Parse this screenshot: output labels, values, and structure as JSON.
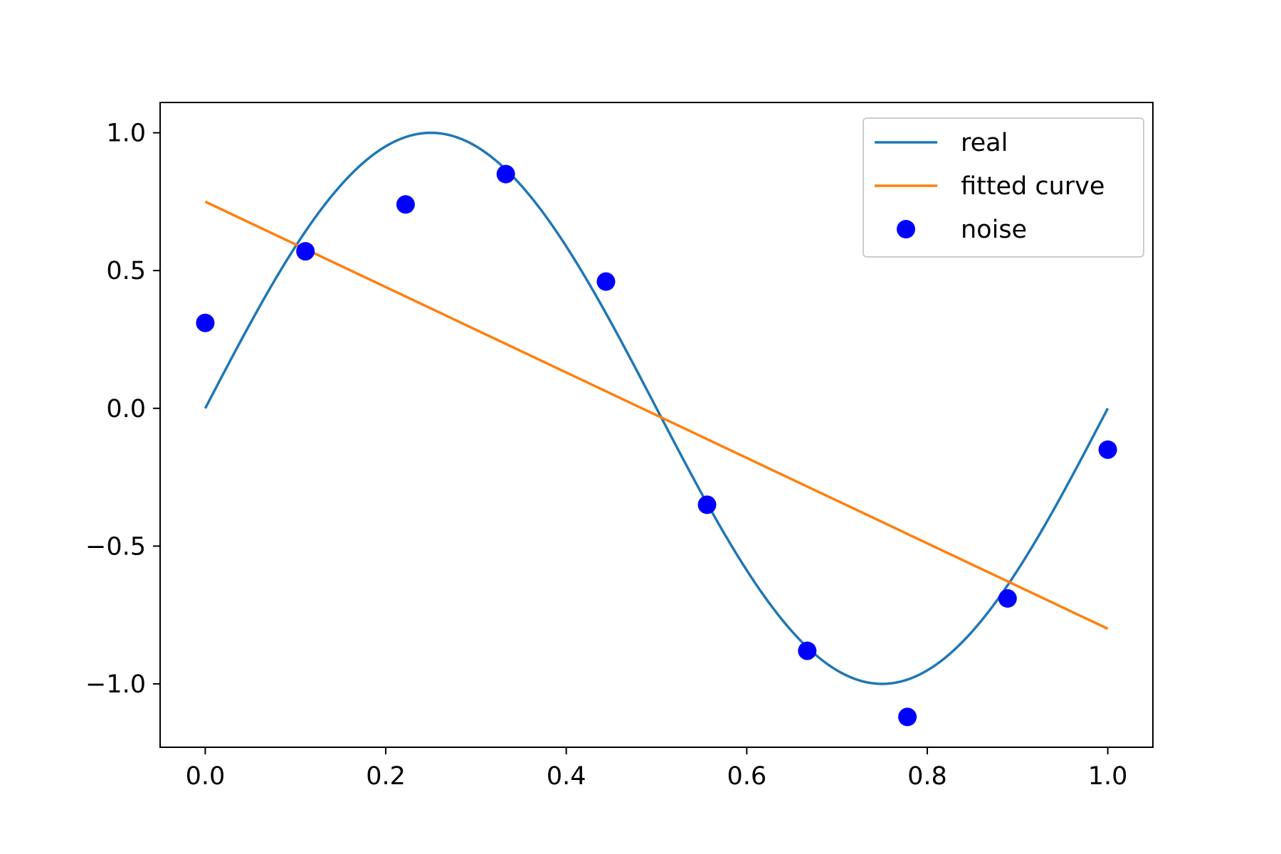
{
  "chart_data": {
    "type": "line",
    "title": "",
    "xlabel": "",
    "ylabel": "",
    "xlim": [
      -0.05,
      1.05
    ],
    "ylim": [
      -1.23,
      1.11
    ],
    "grid": false,
    "legend_position": "top-right",
    "xticks": [
      {
        "value": 0.0,
        "label": "0.0"
      },
      {
        "value": 0.2,
        "label": "0.2"
      },
      {
        "value": 0.4,
        "label": "0.4"
      },
      {
        "value": 0.6,
        "label": "0.6"
      },
      {
        "value": 0.8,
        "label": "0.8"
      },
      {
        "value": 1.0,
        "label": "1.0"
      }
    ],
    "yticks": [
      {
        "value": 1.0,
        "label": "1.0"
      },
      {
        "value": 0.5,
        "label": "0.5"
      },
      {
        "value": 0.0,
        "label": "0.0"
      },
      {
        "value": -0.5,
        "label": "−0.5"
      },
      {
        "value": -1.0,
        "label": "−1.0"
      }
    ],
    "series": [
      {
        "name": "real",
        "kind": "line",
        "color": "#1f77b4",
        "x": [
          0.0,
          0.05,
          0.1,
          0.15,
          0.2,
          0.25,
          0.3,
          0.35,
          0.4,
          0.45,
          0.5,
          0.55,
          0.6,
          0.65,
          0.7,
          0.75,
          0.8,
          0.85,
          0.9,
          0.95,
          1.0
        ],
        "y": [
          0.0,
          0.309,
          0.588,
          0.809,
          0.951,
          1.0,
          0.951,
          0.809,
          0.588,
          0.309,
          0.0,
          -0.309,
          -0.588,
          -0.809,
          -0.951,
          -1.0,
          -0.951,
          -0.809,
          -0.588,
          -0.309,
          0.0
        ]
      },
      {
        "name": "fitted curve",
        "kind": "line",
        "color": "#ff7f0e",
        "x": [
          0.0,
          1.0
        ],
        "y": [
          0.75,
          -0.8
        ]
      },
      {
        "name": "noise",
        "kind": "scatter",
        "color": "#0000ff",
        "x": [
          0.0,
          0.111,
          0.222,
          0.333,
          0.444,
          0.556,
          0.667,
          0.778,
          0.889,
          1.0
        ],
        "y": [
          0.31,
          0.57,
          0.74,
          0.85,
          0.46,
          -0.35,
          -0.88,
          -1.12,
          -0.69,
          -0.15
        ]
      }
    ]
  }
}
